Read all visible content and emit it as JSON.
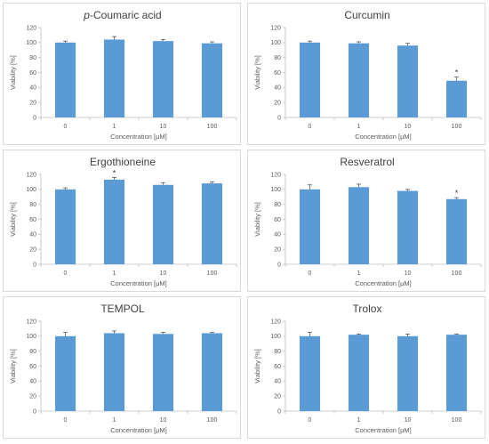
{
  "chart_data": [
    {
      "type": "bar",
      "title_parts": [
        {
          "text": "p",
          "italic": true
        },
        {
          "text": "-Coumaric acid",
          "italic": false
        }
      ],
      "categories": [
        "0",
        "1",
        "10",
        "100"
      ],
      "values": [
        100,
        104,
        102,
        99
      ],
      "errors": [
        2,
        4,
        2,
        2
      ],
      "significant": [
        false,
        false,
        false,
        false
      ],
      "xlabel": "Concentration [μM]",
      "ylabel": "Viability [%]",
      "ylim": [
        0,
        120
      ],
      "yticks": [
        0,
        20,
        40,
        60,
        80,
        100,
        120
      ],
      "grid": false
    },
    {
      "type": "bar",
      "title_parts": [
        {
          "text": "Curcumin",
          "italic": false
        }
      ],
      "categories": [
        "0",
        "1",
        "10",
        "100"
      ],
      "values": [
        100,
        99,
        96,
        49
      ],
      "errors": [
        2,
        2,
        3,
        5
      ],
      "significant": [
        false,
        false,
        false,
        true
      ],
      "xlabel": "Concentration [μM]",
      "ylabel": "Viability [%]",
      "ylim": [
        0,
        120
      ],
      "yticks": [
        0,
        20,
        40,
        60,
        80,
        100,
        120
      ],
      "grid": false
    },
    {
      "type": "bar",
      "title_parts": [
        {
          "text": "Ergothioneine",
          "italic": false
        }
      ],
      "categories": [
        "0",
        "1",
        "10",
        "100"
      ],
      "values": [
        100,
        113,
        106,
        108
      ],
      "errors": [
        2,
        3,
        3,
        2
      ],
      "significant": [
        false,
        true,
        false,
        false
      ],
      "xlabel": "Concentration [μM]",
      "ylabel": "Viability [%]",
      "ylim": [
        0,
        120
      ],
      "yticks": [
        0,
        20,
        40,
        60,
        80,
        100,
        120
      ],
      "grid": false
    },
    {
      "type": "bar",
      "title_parts": [
        {
          "text": "Resveratrol",
          "italic": false
        }
      ],
      "categories": [
        "0",
        "1",
        "10",
        "100"
      ],
      "values": [
        100,
        103,
        98,
        87
      ],
      "errors": [
        6,
        4,
        2,
        2
      ],
      "significant": [
        false,
        false,
        false,
        true
      ],
      "xlabel": "Concentration [μM]",
      "ylabel": "Viability [%]",
      "ylim": [
        0,
        120
      ],
      "yticks": [
        0,
        20,
        40,
        60,
        80,
        100,
        120
      ],
      "grid": false
    },
    {
      "type": "bar",
      "title_parts": [
        {
          "text": "TEMPOL",
          "italic": false
        }
      ],
      "categories": [
        "0",
        "1",
        "10",
        "100"
      ],
      "values": [
        100,
        104,
        103,
        104
      ],
      "errors": [
        5,
        3,
        2,
        1
      ],
      "significant": [
        false,
        false,
        false,
        false
      ],
      "xlabel": "Concentration [μM]",
      "ylabel": "Viability [%]",
      "ylim": [
        0,
        120
      ],
      "yticks": [
        0,
        20,
        40,
        60,
        80,
        100,
        120
      ],
      "grid": false
    },
    {
      "type": "bar",
      "title_parts": [
        {
          "text": "Trolox",
          "italic": false
        }
      ],
      "categories": [
        "0",
        "1",
        "10",
        "100"
      ],
      "values": [
        100,
        102,
        100,
        102
      ],
      "errors": [
        5,
        1,
        3,
        1
      ],
      "significant": [
        false,
        false,
        false,
        false
      ],
      "xlabel": "Concentration [μM]",
      "ylabel": "Viability [%]",
      "ylim": [
        0,
        120
      ],
      "yticks": [
        0,
        20,
        40,
        60,
        80,
        100,
        120
      ],
      "grid": false
    }
  ],
  "significance_marker": "*",
  "colors": {
    "bar": "#5b9bd5",
    "axis": "#bfbfbf",
    "text": "#595959",
    "title": "#404040",
    "error_bar": "#404040"
  }
}
